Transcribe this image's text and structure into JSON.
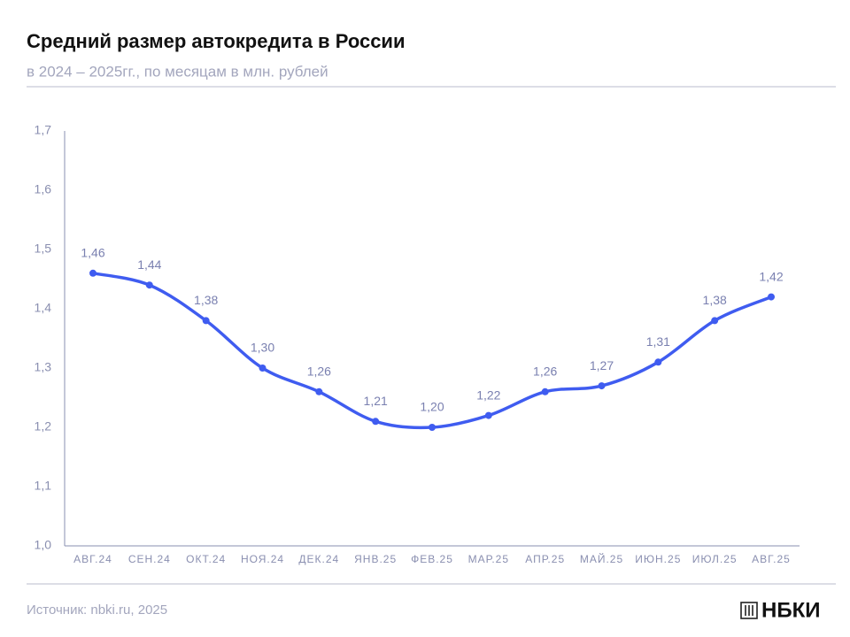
{
  "chart_data": {
    "type": "line",
    "title": "Средний размер автокредита в России",
    "subtitle": "в 2024 – 2025гг., по месяцам в млн. рублей",
    "categories": [
      "АВГ.24",
      "СЕН.24",
      "ОКТ.24",
      "НОЯ.24",
      "ДЕК.24",
      "ЯНВ.25",
      "ФЕВ.25",
      "МАР.25",
      "АПР.25",
      "МАЙ.25",
      "ИЮН.25",
      "ИЮЛ.25",
      "АВГ.25"
    ],
    "series": [
      {
        "name": "Средний размер автокредита",
        "color": "#3f5cf0",
        "values": [
          1.46,
          1.44,
          1.38,
          1.3,
          1.26,
          1.21,
          1.2,
          1.22,
          1.26,
          1.27,
          1.31,
          1.38,
          1.42
        ],
        "value_labels": [
          "1,46",
          "1,44",
          "1,38",
          "1,30",
          "1,26",
          "1,21",
          "1,20",
          "1,22",
          "1,26",
          "1,27",
          "1,31",
          "1,38",
          "1,42"
        ]
      }
    ],
    "ylim": [
      1.0,
      1.7
    ],
    "yticks": [
      {
        "value": 1.0,
        "label": "1,0"
      },
      {
        "value": 1.1,
        "label": "1,1"
      },
      {
        "value": 1.2,
        "label": "1,2"
      },
      {
        "value": 1.3,
        "label": "1,3"
      },
      {
        "value": 1.4,
        "label": "1,4"
      },
      {
        "value": 1.5,
        "label": "1,5"
      },
      {
        "value": 1.6,
        "label": "1,6"
      },
      {
        "value": 1.7,
        "label": "1,7"
      }
    ],
    "grid": false,
    "source": "Источник: nbki.ru, 2025",
    "logo": "НБКИ"
  }
}
